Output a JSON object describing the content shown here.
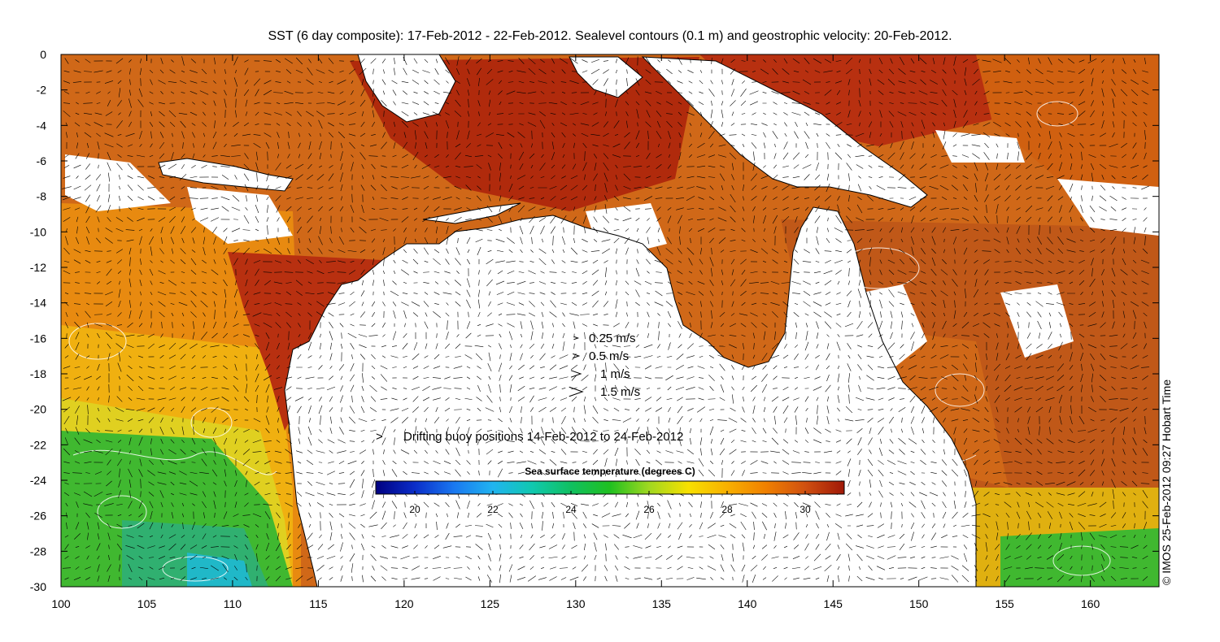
{
  "title": "SST (6 day composite): 17-Feb-2012 - 22-Feb-2012. Sealevel contours (0.1 m) and geostrophic velocity: 20-Feb-2012.",
  "credit": "© IMOS 25-Feb-2012 09:27 Hobart Time",
  "x_ticks": [
    "100",
    "105",
    "110",
    "115",
    "120",
    "125",
    "130",
    "135",
    "140",
    "145",
    "150",
    "155",
    "160"
  ],
  "y_ticks": [
    "0",
    "-2",
    "-4",
    "-6",
    "-8",
    "-10",
    "-12",
    "-14",
    "-16",
    "-18",
    "-20",
    "-22",
    "-24",
    "-26",
    "-28",
    "-30"
  ],
  "velocity_legend": [
    {
      "label": "0.25 m/s",
      "speed": 0.25
    },
    {
      "label": "0.5 m/s",
      "speed": 0.5
    },
    {
      "label": "1 m/s",
      "speed": 1
    },
    {
      "label": "1.5 m/s",
      "speed": 1.5
    }
  ],
  "buoy_legend": {
    "symbol": ">",
    "label": "Drifting buoy positions 14-Feb-2012 to 24-Feb-2012",
    "color": "#ff00ff"
  },
  "colorbar": {
    "title": "Sea surface temperature (degrees C)",
    "range": [
      19,
      31
    ],
    "ticks": [
      "20",
      "22",
      "24",
      "26",
      "28",
      "30"
    ],
    "colors": [
      "#000080",
      "#0a2dc8",
      "#1a78f0",
      "#20b4f0",
      "#10c8b0",
      "#10c060",
      "#20c020",
      "#a0d820",
      "#f8e000",
      "#f8b000",
      "#f08000",
      "#d05010",
      "#a01808"
    ]
  },
  "map": {
    "lon_range": [
      100,
      164
    ],
    "lat_range": [
      -30,
      0
    ],
    "land_color": "#ffffff",
    "contour_color": "#ffffff",
    "vector_color": "#000000"
  }
}
